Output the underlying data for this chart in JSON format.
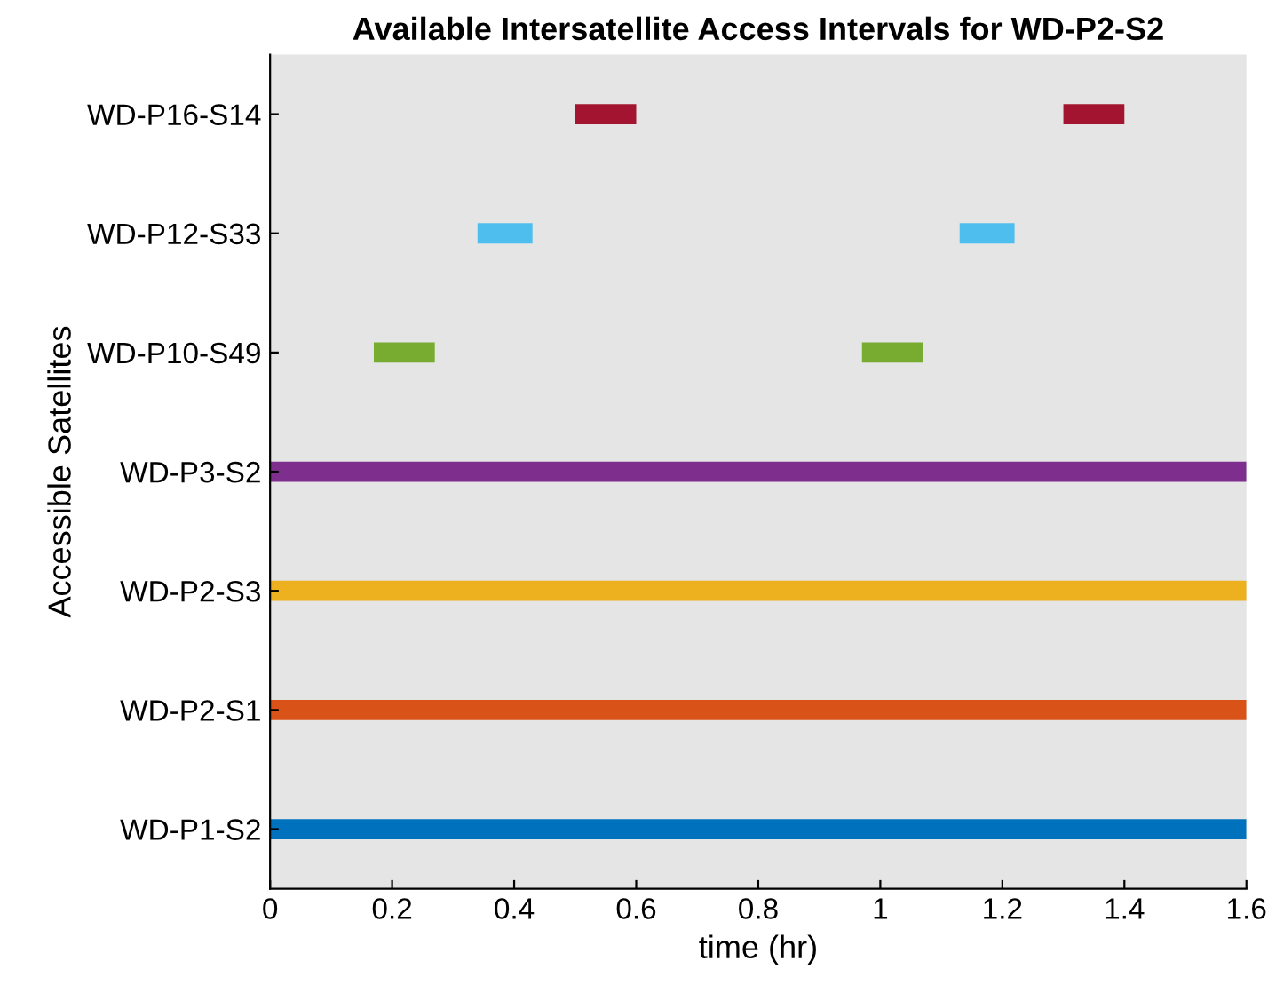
{
  "chart_data": {
    "type": "bar",
    "orientation": "horizontal",
    "title": "Available Intersatellite Access Intervals for WD-P2-S2",
    "xlabel": "time (hr)",
    "ylabel": "Accessible Satellites",
    "categories": [
      "WD-P16-S14",
      "WD-P12-S33",
      "WD-P10-S49",
      "WD-P3-S2",
      "WD-P2-S3",
      "WD-P2-S1",
      "WD-P1-S2"
    ],
    "series": [
      {
        "colors": [
          "#a2142f",
          "#4dbeee",
          "#77ac30",
          "#7e2f8e",
          "#edb120",
          "#d95319",
          "#0072bd"
        ],
        "base": [
          0.5,
          0.34,
          0.17,
          0,
          0,
          0,
          0
        ],
        "values": [
          0.1,
          0.09,
          0.1,
          1.6,
          1.6,
          1.6,
          1.6
        ]
      },
      {
        "colors": [
          "#a2142f",
          "#4dbeee",
          "#77ac30",
          null,
          null,
          null,
          null
        ],
        "base": [
          1.3,
          1.13,
          0.97,
          null,
          null,
          null,
          null
        ],
        "values": [
          0.1,
          0.09,
          0.1,
          null,
          null,
          null,
          null
        ]
      }
    ],
    "xlim": [
      0,
      1.6
    ],
    "xticks": [
      0,
      0.2,
      0.4,
      0.6,
      0.8,
      1,
      1.2,
      1.4,
      1.6
    ],
    "grid": false,
    "legend": false
  }
}
